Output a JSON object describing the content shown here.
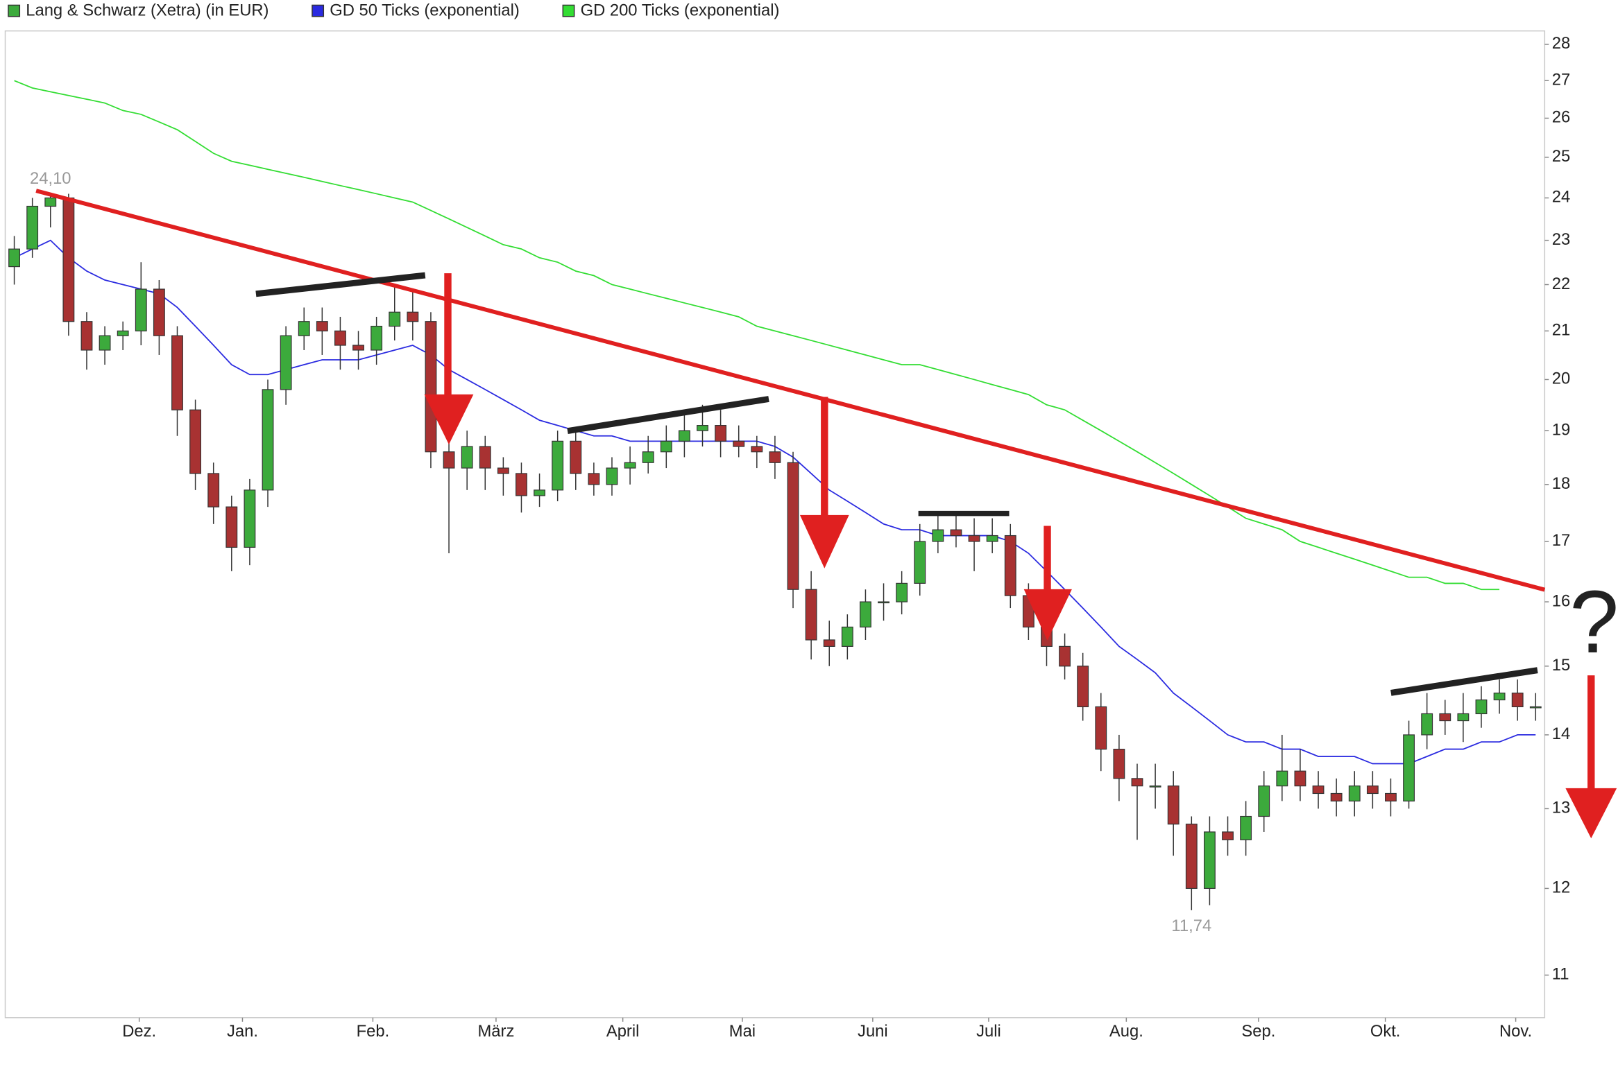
{
  "chart_data": {
    "type": "candlestick",
    "name": "Lang & Schwarz (Xetra) (in EUR)",
    "color_up": "#3caa3c",
    "color_down": "#a83232",
    "log_scale": true,
    "ylim": [
      10.54,
      28.38
    ],
    "yticks": [
      11,
      12,
      13,
      14,
      15,
      16,
      17,
      18,
      19,
      20,
      21,
      22,
      23,
      24,
      25,
      26,
      27,
      28
    ],
    "xlim": [
      -0.5,
      84.5
    ],
    "xticks": [
      {
        "value": 6.9,
        "label": "Dez."
      },
      {
        "value": 12.6,
        "label": "Jan."
      },
      {
        "value": 19.8,
        "label": "Feb."
      },
      {
        "value": 26.6,
        "label": "März"
      },
      {
        "value": 33.6,
        "label": "April"
      },
      {
        "value": 40.2,
        "label": "Mai"
      },
      {
        "value": 47.4,
        "label": "Juni"
      },
      {
        "value": 53.8,
        "label": "Juli"
      },
      {
        "value": 61.4,
        "label": "Aug."
      },
      {
        "value": 68.7,
        "label": "Sep."
      },
      {
        "value": 75.7,
        "label": "Okt."
      },
      {
        "value": 82.9,
        "label": "Nov."
      }
    ],
    "open": [
      22.4,
      22.8,
      23.8,
      24.0,
      21.2,
      20.6,
      20.9,
      21.0,
      21.9,
      20.9,
      19.4,
      18.2,
      17.6,
      16.9,
      17.9,
      19.8,
      20.9,
      21.2,
      21.0,
      20.7,
      20.6,
      21.1,
      21.4,
      21.2,
      18.6,
      18.3,
      18.7,
      18.3,
      18.2,
      17.8,
      17.9,
      18.8,
      18.2,
      18.0,
      18.3,
      18.4,
      18.6,
      18.8,
      19.0,
      19.1,
      18.8,
      18.7,
      18.6,
      18.4,
      16.2,
      15.4,
      15.3,
      15.6,
      16.0,
      16.0,
      16.3,
      17.0,
      17.2,
      17.1,
      17.0,
      17.1,
      16.1,
      15.6,
      15.3,
      15.0,
      14.4,
      13.8,
      13.4,
      13.3,
      13.3,
      12.8,
      12.0,
      12.7,
      12.6,
      12.9,
      13.3,
      13.5,
      13.3,
      13.2,
      13.1,
      13.3,
      13.2,
      13.1,
      14.0,
      14.3,
      14.2,
      14.3,
      14.5,
      14.6,
      14.4
    ],
    "high": [
      23.1,
      24.0,
      24.1,
      24.1,
      21.4,
      21.1,
      21.2,
      22.5,
      22.1,
      21.1,
      19.6,
      18.4,
      17.8,
      18.1,
      20.0,
      21.1,
      21.5,
      21.5,
      21.3,
      21.0,
      21.3,
      22.0,
      21.9,
      21.4,
      19.3,
      19.0,
      18.9,
      18.5,
      18.4,
      18.2,
      19.0,
      19.0,
      18.4,
      18.5,
      18.7,
      18.9,
      19.1,
      19.4,
      19.5,
      19.4,
      19.1,
      18.9,
      18.9,
      18.6,
      16.5,
      15.7,
      15.8,
      16.2,
      16.3,
      16.5,
      17.3,
      17.5,
      17.5,
      17.4,
      17.4,
      17.3,
      16.3,
      15.8,
      15.5,
      15.2,
      14.6,
      14.0,
      13.6,
      13.6,
      13.5,
      12.9,
      12.9,
      12.9,
      13.1,
      13.5,
      14.0,
      13.8,
      13.5,
      13.4,
      13.5,
      13.5,
      13.4,
      14.2,
      14.6,
      14.5,
      14.6,
      14.7,
      14.8,
      14.8,
      14.6
    ],
    "low": [
      22.0,
      22.6,
      23.3,
      20.9,
      20.2,
      20.3,
      20.6,
      20.7,
      20.5,
      18.9,
      17.9,
      17.3,
      16.5,
      16.6,
      17.6,
      19.5,
      20.6,
      20.5,
      20.2,
      20.2,
      20.3,
      20.8,
      20.8,
      18.3,
      16.8,
      17.9,
      17.9,
      17.8,
      17.5,
      17.6,
      17.7,
      17.9,
      17.8,
      17.8,
      18.0,
      18.2,
      18.3,
      18.5,
      18.7,
      18.5,
      18.5,
      18.3,
      18.1,
      15.9,
      15.1,
      15.0,
      15.1,
      15.4,
      15.7,
      15.8,
      16.1,
      16.8,
      16.9,
      16.5,
      16.8,
      15.9,
      15.4,
      15.0,
      14.8,
      14.2,
      13.5,
      13.1,
      12.6,
      13.0,
      12.4,
      11.74,
      11.8,
      12.4,
      12.4,
      12.7,
      13.1,
      13.1,
      13.0,
      12.9,
      12.9,
      13.0,
      12.9,
      13.0,
      13.8,
      14.0,
      13.9,
      14.1,
      14.3,
      14.2,
      14.2
    ],
    "close": [
      22.8,
      23.8,
      24.0,
      21.2,
      20.6,
      20.9,
      21.0,
      21.9,
      20.9,
      19.4,
      18.2,
      17.6,
      16.9,
      17.9,
      19.8,
      20.9,
      21.2,
      21.0,
      20.7,
      20.6,
      21.1,
      21.4,
      21.2,
      18.6,
      18.3,
      18.7,
      18.3,
      18.2,
      17.8,
      17.9,
      18.8,
      18.2,
      18.0,
      18.3,
      18.4,
      18.6,
      18.8,
      19.0,
      19.1,
      18.8,
      18.7,
      18.6,
      18.4,
      16.2,
      15.4,
      15.3,
      15.6,
      16.0,
      16.0,
      16.3,
      17.0,
      17.2,
      17.1,
      17.0,
      17.1,
      16.1,
      15.6,
      15.3,
      15.0,
      14.4,
      13.8,
      13.4,
      13.3,
      13.3,
      12.8,
      12.0,
      12.7,
      12.6,
      12.9,
      13.3,
      13.5,
      13.3,
      13.2,
      13.1,
      13.3,
      13.2,
      13.1,
      14.0,
      14.3,
      14.2,
      14.3,
      14.5,
      14.6,
      14.4,
      14.4
    ],
    "series": [
      {
        "name": "GD 50 Ticks (exponential)",
        "color": "#2a2ae0",
        "values": [
          22.6,
          22.8,
          23.0,
          22.6,
          22.3,
          22.1,
          22.0,
          21.9,
          21.8,
          21.5,
          21.1,
          20.7,
          20.3,
          20.1,
          20.1,
          20.2,
          20.3,
          20.4,
          20.4,
          20.4,
          20.5,
          20.6,
          20.7,
          20.5,
          20.2,
          20.0,
          19.8,
          19.6,
          19.4,
          19.2,
          19.1,
          19.0,
          18.9,
          18.9,
          18.8,
          18.8,
          18.8,
          18.8,
          18.8,
          18.8,
          18.8,
          18.8,
          18.7,
          18.5,
          18.2,
          17.9,
          17.7,
          17.5,
          17.3,
          17.2,
          17.2,
          17.1,
          17.1,
          17.1,
          17.1,
          17.0,
          16.8,
          16.5,
          16.2,
          15.9,
          15.6,
          15.3,
          15.1,
          14.9,
          14.6,
          14.4,
          14.2,
          14.0,
          13.9,
          13.9,
          13.8,
          13.8,
          13.7,
          13.7,
          13.7,
          13.6,
          13.6,
          13.6,
          13.7,
          13.8,
          13.8,
          13.9,
          13.9,
          14.0,
          14.0
        ]
      },
      {
        "name": "GD 200 Ticks (exponential)",
        "color": "#33dd33",
        "values": [
          27.0,
          26.8,
          26.7,
          26.6,
          26.5,
          26.4,
          26.2,
          26.1,
          25.9,
          25.7,
          25.4,
          25.1,
          24.9,
          24.8,
          24.7,
          24.6,
          24.5,
          24.4,
          24.3,
          24.2,
          24.1,
          24.0,
          23.9,
          23.7,
          23.5,
          23.3,
          23.1,
          22.9,
          22.8,
          22.6,
          22.5,
          22.3,
          22.2,
          22.0,
          21.9,
          21.8,
          21.7,
          21.6,
          21.5,
          21.4,
          21.3,
          21.1,
          21.0,
          20.9,
          20.8,
          20.7,
          20.6,
          20.5,
          20.4,
          20.3,
          20.3,
          20.2,
          20.1,
          20.0,
          19.9,
          19.8,
          19.7,
          19.5,
          19.4,
          19.2,
          19.0,
          18.8,
          18.6,
          18.4,
          18.2,
          18.0,
          17.8,
          17.6,
          17.4,
          17.3,
          17.2,
          17.0,
          16.9,
          16.8,
          16.7,
          16.6,
          16.5,
          16.4,
          16.4,
          16.3,
          16.3,
          16.2,
          16.2,
          null,
          null
        ]
      }
    ],
    "high_label": {
      "value": 24.1,
      "label": "24,10"
    },
    "low_label": {
      "value": 11.74,
      "label": "11,74"
    },
    "question_mark": "?"
  }
}
